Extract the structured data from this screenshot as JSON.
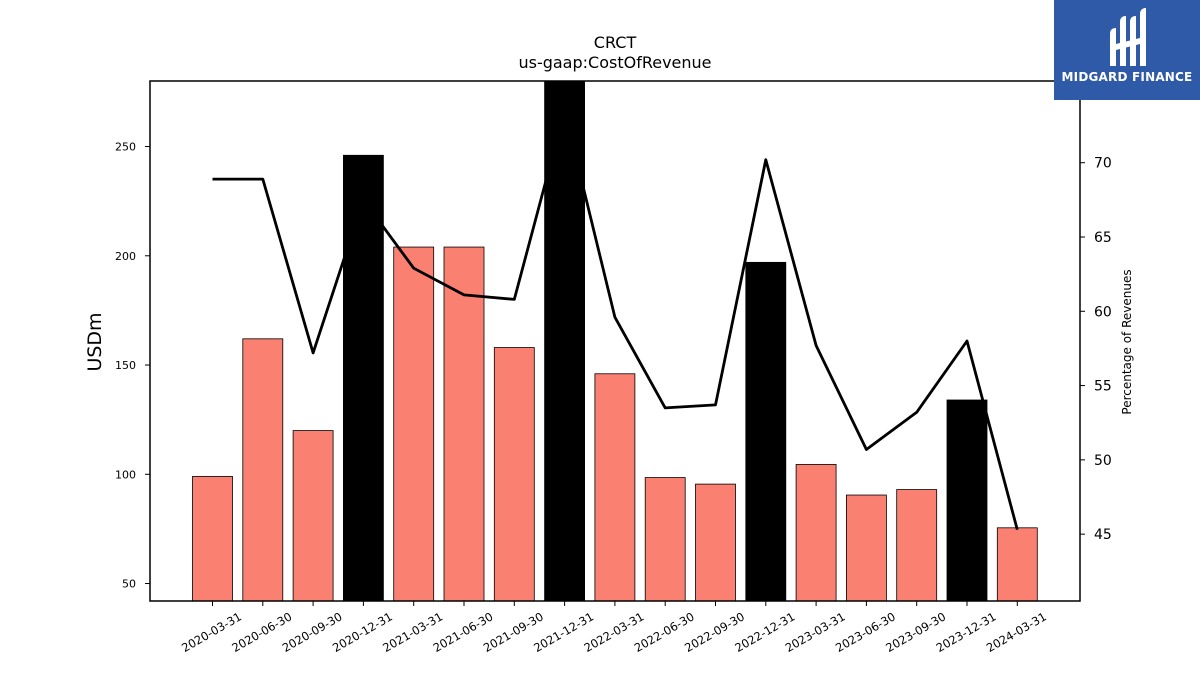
{
  "chart_data": {
    "type": "bar+line",
    "title": "CRCT",
    "subtitle": "us-gaap:CostOfRevenue",
    "ylabel": "USDm",
    "y2label": "Percentage of Revenues",
    "ylim": [
      42,
      280
    ],
    "y2lim": [
      40.5,
      75.5
    ],
    "yticks": [
      50,
      100,
      150,
      200,
      250
    ],
    "y2ticks": [
      45,
      50,
      55,
      60,
      65,
      70
    ],
    "categories": [
      "2020-03-31",
      "2020-06-30",
      "2020-09-30",
      "2020-12-31",
      "2021-03-31",
      "2021-06-30",
      "2021-09-30",
      "2021-12-31",
      "2022-03-31",
      "2022-06-30",
      "2022-09-30",
      "2022-12-31",
      "2023-03-31",
      "2023-06-30",
      "2023-09-30",
      "2023-12-31",
      "2024-03-31"
    ],
    "values": [
      99,
      162,
      120,
      246,
      204,
      204,
      158,
      280,
      146,
      98.5,
      95.5,
      197,
      104.5,
      90.5,
      93,
      134,
      75.5
    ],
    "bar_colors": [
      "#fa8072",
      "#fa8072",
      "#fa8072",
      "#000000",
      "#fa8072",
      "#fa8072",
      "#fa8072",
      "#000000",
      "#fa8072",
      "#fa8072",
      "#fa8072",
      "#000000",
      "#fa8072",
      "#fa8072",
      "#fa8072",
      "#000000",
      "#fa8072"
    ],
    "pct_of_revenue": [
      68.9,
      68.9,
      57.2,
      67.5,
      62.9,
      61.1,
      60.8,
      73.5,
      59.6,
      53.5,
      53.7,
      70.2,
      57.7,
      50.7,
      53.2,
      58.0,
      45.3
    ],
    "legend": "none",
    "grid": false
  },
  "logo": {
    "text": "MIDGARD FINANCE"
  }
}
